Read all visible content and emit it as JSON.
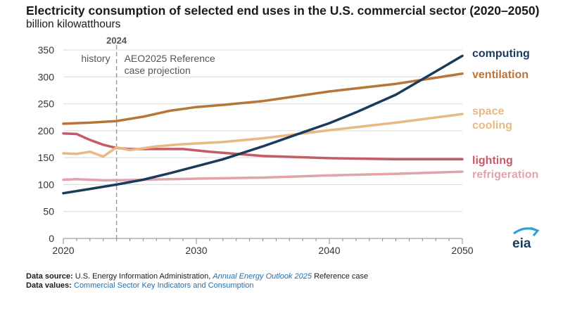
{
  "title": "Electricity consumption of selected end uses in the U.S. commercial sector (2020–2050)",
  "subtitle": "billion kilowatthours",
  "annotations": {
    "divider_year_label": "2024",
    "divider_year": 2024,
    "history": "history",
    "projection_line1": "AEO2025 Reference",
    "projection_line2": "case projection"
  },
  "footer": {
    "source_label": "Data source:",
    "source_text": "U.S. Energy Information Administration,",
    "source_link": "Annual Energy Outlook 2025",
    "source_suffix": "Reference case",
    "values_label": "Data values:",
    "values_link": "Commercial Sector Key Indicators and Consumption"
  },
  "logo_text": "eia",
  "chart_data": {
    "type": "line",
    "xlim": [
      2020,
      2050
    ],
    "ylim": [
      0,
      350
    ],
    "x_ticks": [
      2020,
      2030,
      2040,
      2050
    ],
    "y_ticks": [
      0,
      50,
      100,
      150,
      200,
      250,
      300,
      350
    ],
    "grid": "horizontal",
    "series": [
      {
        "key": "refrigeration",
        "name": "refrigeration",
        "color": "#e0a4aa",
        "x": [
          2020,
          2021,
          2022,
          2023,
          2024,
          2026,
          2028,
          2030,
          2035,
          2040,
          2045,
          2050
        ],
        "values": [
          109,
          110,
          109,
          108,
          108,
          109,
          110,
          111,
          113,
          117,
          120,
          124
        ]
      },
      {
        "key": "lighting",
        "name": "lighting",
        "color": "#c45b67",
        "x": [
          2020,
          2021,
          2022,
          2023,
          2024,
          2025,
          2027,
          2029,
          2031,
          2035,
          2040,
          2045,
          2050
        ],
        "values": [
          195,
          194,
          183,
          174,
          168,
          166,
          166,
          166,
          161,
          153,
          149,
          147,
          147
        ]
      },
      {
        "key": "space_cooling",
        "name": "space cooling",
        "color": "#e8b985",
        "x": [
          2020,
          2021,
          2022,
          2023,
          2024,
          2025,
          2027,
          2029,
          2032,
          2035,
          2040,
          2045,
          2050
        ],
        "values": [
          158,
          157,
          161,
          152,
          169,
          164,
          171,
          175,
          179,
          186,
          201,
          215,
          231
        ]
      },
      {
        "key": "ventilation",
        "name": "ventilation",
        "color": "#b8753a",
        "x": [
          2020,
          2022,
          2024,
          2026,
          2028,
          2030,
          2032,
          2035,
          2040,
          2045,
          2050
        ],
        "values": [
          213,
          215,
          218,
          226,
          237,
          244,
          248,
          255,
          273,
          287,
          306
        ]
      },
      {
        "key": "computing",
        "name": "computing",
        "color": "#1b3b5a",
        "x": [
          2020,
          2022,
          2024,
          2026,
          2028,
          2030,
          2032,
          2035,
          2038,
          2040,
          2042,
          2045,
          2048,
          2050
        ],
        "values": [
          84,
          92,
          100,
          109,
          121,
          134,
          147,
          171,
          197,
          214,
          234,
          267,
          310,
          339
        ]
      }
    ]
  }
}
